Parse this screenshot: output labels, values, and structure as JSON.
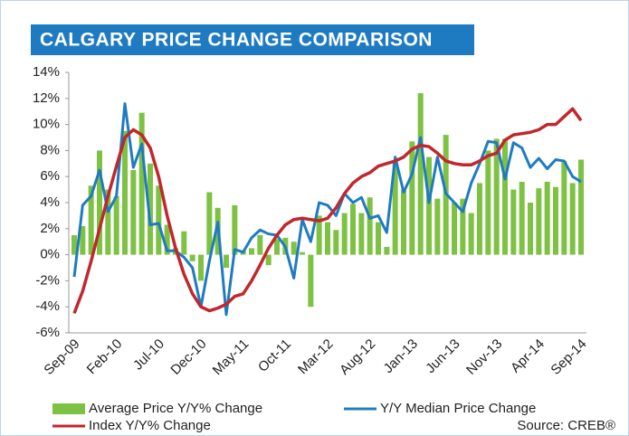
{
  "chart_data": {
    "type": "bar_line",
    "title": "CALGARY PRICE CHANGE COMPARISON",
    "annotation": "Source: CREB®",
    "categories": [
      "Sep-09",
      null,
      null,
      null,
      null,
      "Feb-10",
      null,
      null,
      null,
      null,
      "Jul-10",
      null,
      null,
      null,
      null,
      "Dec-10",
      null,
      null,
      null,
      null,
      "May-11",
      null,
      null,
      null,
      null,
      "Oct-11",
      null,
      null,
      null,
      null,
      "Mar-12",
      null,
      null,
      null,
      null,
      "Aug-12",
      null,
      null,
      null,
      null,
      "Jan-13",
      null,
      null,
      null,
      null,
      "Jun-13",
      null,
      null,
      null,
      null,
      "Nov-13",
      null,
      null,
      null,
      null,
      "Apr-14",
      null,
      null,
      null,
      null,
      "Sep-14"
    ],
    "series": [
      {
        "name": "Average Price Y/Y% Change",
        "kind": "bar",
        "color": "#7dc242",
        "values": [
          1.5,
          2.2,
          5.3,
          8.0,
          5.0,
          4.5,
          9.5,
          6.5,
          10.9,
          7.0,
          5.3,
          2.3,
          0.5,
          1.8,
          -0.5,
          -2.0,
          4.8,
          3.6,
          -1.0,
          3.8,
          0.3,
          0.5,
          1.5,
          -0.8,
          1.2,
          1.3,
          1.0,
          0.2,
          -4.0,
          3.0,
          2.5,
          1.9,
          3.2,
          3.9,
          3.2,
          4.4,
          2.5,
          0.6,
          7.2,
          5.0,
          8.7,
          12.4,
          7.5,
          4.3,
          9.2,
          4.0,
          4.3,
          3.2,
          5.5,
          8.0,
          8.9,
          8.9,
          5.0,
          5.6,
          4.0,
          5.1,
          5.6,
          5.2,
          7.2,
          5.5,
          7.3
        ]
      },
      {
        "name": "Y/Y Median Price Change",
        "kind": "line",
        "color": "#1f7bc1",
        "values": [
          -1.7,
          3.8,
          4.5,
          6.5,
          3.3,
          4.5,
          11.6,
          6.7,
          8.5,
          2.3,
          2.4,
          0.3,
          0.3,
          -0.2,
          -1.0,
          -4.0,
          -0.5,
          2.5,
          -4.6,
          0.4,
          0.2,
          1.3,
          1.9,
          1.6,
          1.5,
          0.6,
          -1.8,
          2.7,
          1.0,
          4.0,
          3.8,
          3.0,
          4.7,
          4.0,
          4.4,
          2.8,
          3.0,
          1.7,
          7.5,
          4.8,
          6.2,
          9.0,
          4.0,
          7.5,
          4.7,
          4.0,
          3.3,
          5.5,
          7.0,
          8.7,
          8.6,
          5.8,
          8.6,
          8.2,
          6.7,
          7.4,
          6.6,
          7.3,
          7.2,
          6.0,
          5.6
        ]
      },
      {
        "name": "Index Y/Y% Change",
        "kind": "line",
        "color": "#c1272d",
        "values": [
          -4.5,
          -2.8,
          -0.5,
          2.0,
          4.5,
          6.8,
          9.0,
          9.6,
          9.2,
          8.2,
          6.0,
          3.0,
          0.5,
          -1.5,
          -3.0,
          -4.0,
          -4.3,
          -4.1,
          -3.8,
          -3.2,
          -3.0,
          -2.0,
          -0.8,
          0.5,
          1.5,
          2.3,
          2.7,
          2.8,
          2.7,
          2.6,
          2.8,
          3.6,
          4.7,
          5.5,
          6.0,
          6.3,
          6.8,
          7.0,
          7.2,
          7.5,
          8.1,
          8.4,
          8.3,
          7.8,
          7.2,
          7.0,
          6.9,
          6.9,
          7.2,
          7.6,
          7.8,
          8.8,
          9.2,
          9.3,
          9.4,
          9.6,
          10.0,
          10.0,
          10.6,
          11.2,
          10.3
        ]
      }
    ],
    "ylim": [
      -6,
      14
    ],
    "yticks": [
      {
        "value": -6,
        "label": "-6%"
      },
      {
        "value": -4,
        "label": "-4%"
      },
      {
        "value": -2,
        "label": "-2%"
      },
      {
        "value": 0,
        "label": "0%"
      },
      {
        "value": 2,
        "label": "2%"
      },
      {
        "value": 4,
        "label": "4%"
      },
      {
        "value": 6,
        "label": "6%"
      },
      {
        "value": 8,
        "label": "8%"
      },
      {
        "value": 10,
        "label": "10%"
      },
      {
        "value": 12,
        "label": "12%"
      },
      {
        "value": 14,
        "label": "14%"
      }
    ],
    "legend": "bottom",
    "grid": false
  }
}
